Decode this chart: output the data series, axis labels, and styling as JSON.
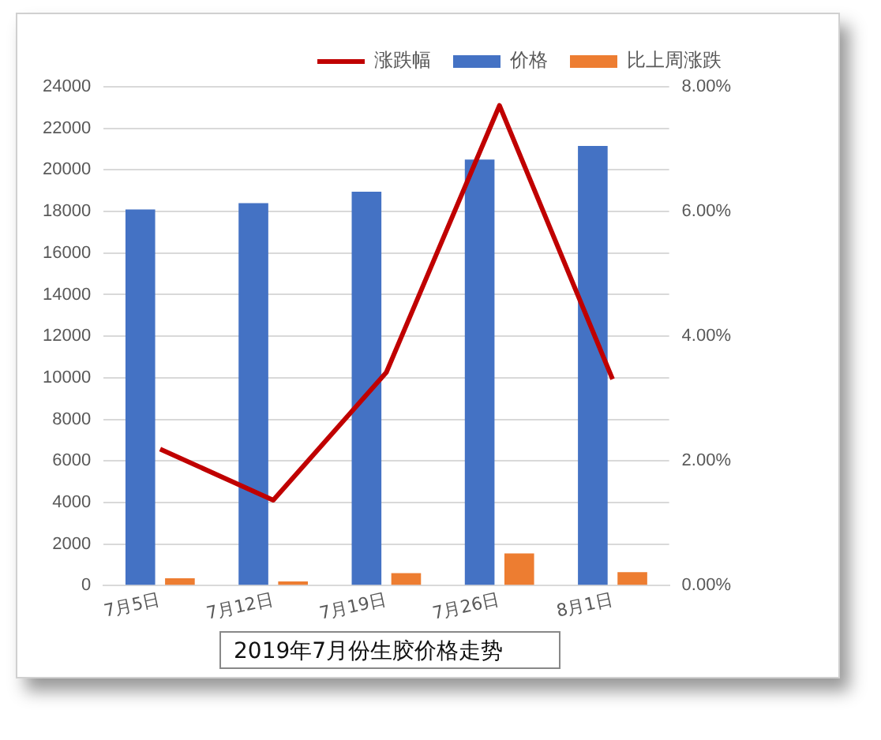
{
  "chart_data": {
    "type": "bar",
    "title": "2019年7月份生胶价格走势",
    "categories": [
      "7月5日",
      "7月12日",
      "7月19日",
      "7月26日",
      "8月1日"
    ],
    "series": [
      {
        "name": "价格",
        "color": "#4472c4",
        "values": [
          18100,
          18400,
          18950,
          20500,
          21150
        ]
      },
      {
        "name": "比上周涨跌",
        "color": "#ed7d31",
        "values": [
          350,
          200,
          600,
          1550,
          650
        ]
      },
      {
        "name": "涨跌幅",
        "type": "line",
        "axis": "y2",
        "color": "#c00000",
        "values": [
          2.19,
          1.37,
          3.42,
          7.7,
          3.31
        ]
      }
    ],
    "ylim": [
      0,
      24000
    ],
    "yticks": [
      0,
      2000,
      4000,
      6000,
      8000,
      10000,
      12000,
      14000,
      16000,
      18000,
      20000,
      22000,
      24000
    ],
    "y2lim": [
      0,
      8
    ],
    "y2ticks": [
      {
        "value": 0,
        "label": "0.00%"
      },
      {
        "value": 2,
        "label": "2.00%"
      },
      {
        "value": 4,
        "label": "4.00%"
      },
      {
        "value": 6,
        "label": "6.00%"
      },
      {
        "value": 8,
        "label": "8.00%"
      }
    ],
    "grid": "y",
    "legend": "top right",
    "marker": "none",
    "line_style": "solid"
  }
}
